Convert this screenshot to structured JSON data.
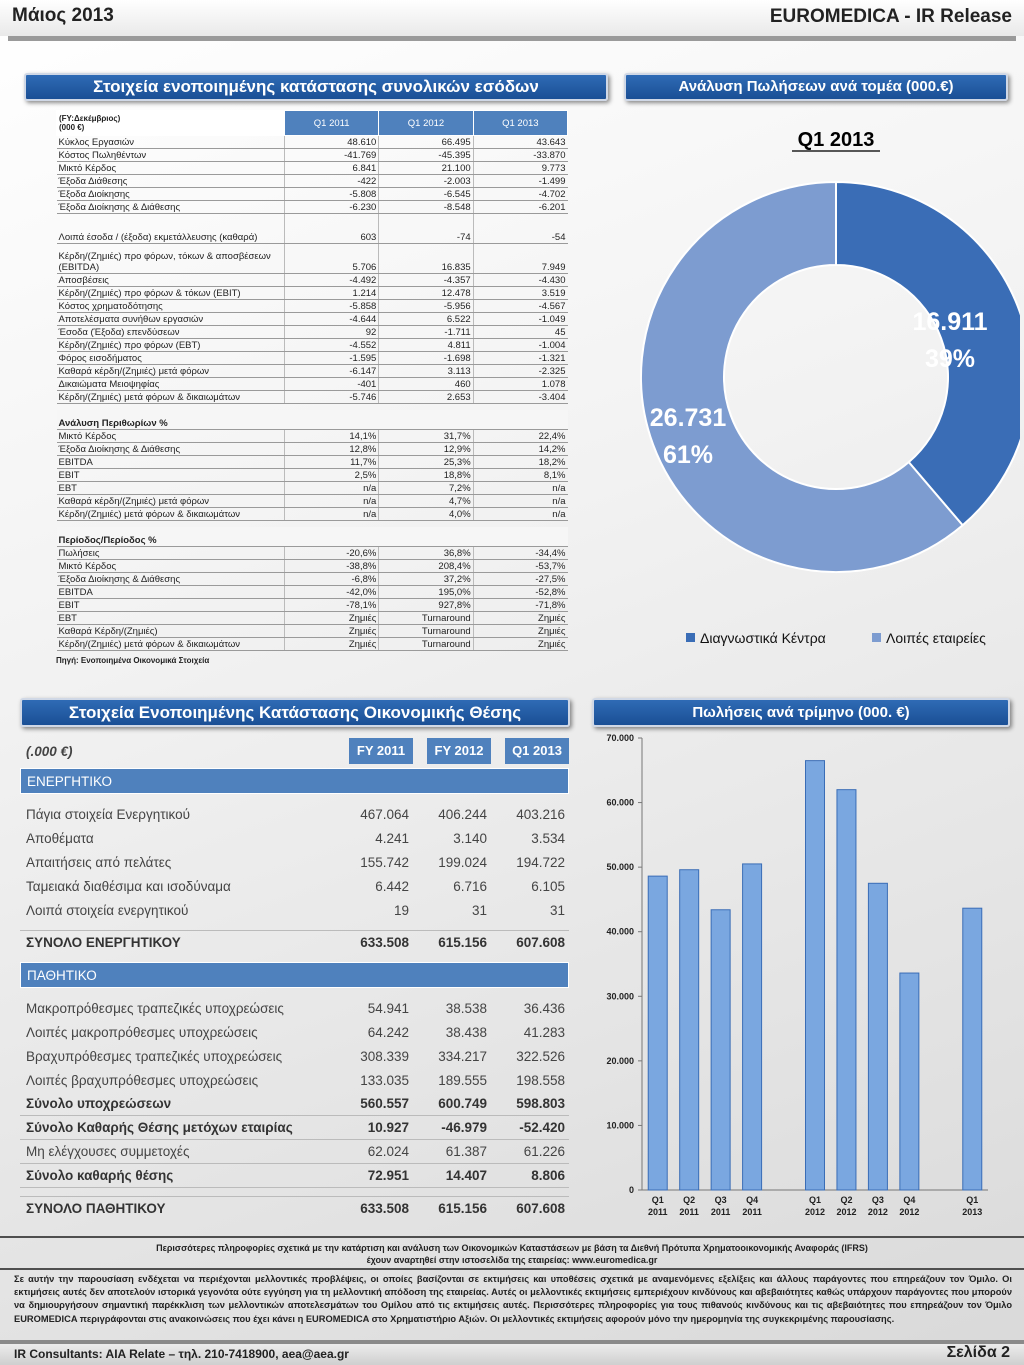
{
  "header": {
    "left": "Μάιος 2013",
    "right": "EUROMEDICA - IR Release"
  },
  "banners": {
    "income": "Στοιχεία ενοποιημένης κατάστασης συνολικών εσόδων",
    "sales_sector": "Ανάλυση Πωλήσεων ανά τομέα (000.€)",
    "balance": "Στοιχεία Ενοποιημένης Κατάστασης Οικονομικής Θέσης",
    "quarterly": "Πωλήσεις ανά τρίμηνο (000. €)"
  },
  "income": {
    "unit_line1": "(FY:Δεκέμβριος)",
    "unit_line2": "(000 €)",
    "columns": [
      "Q1 2011",
      "Q1 2012",
      "Q1 2013"
    ],
    "rows": [
      {
        "label": "Κύκλος Εργασιών",
        "v": [
          "48.610",
          "66.495",
          "43.643"
        ]
      },
      {
        "label": "Κόστος Πωληθέντων",
        "v": [
          "-41.769",
          "-45.395",
          "-33.870"
        ]
      },
      {
        "label": "Μικτό Κέρδος",
        "v": [
          "6.841",
          "21.100",
          "9.773"
        ]
      },
      {
        "label": "Έξοδα Διάθεσης",
        "v": [
          "-422",
          "-2.003",
          "-1.499"
        ]
      },
      {
        "label": "Έξοδα Διοίκησης",
        "v": [
          "-5.808",
          "-6.545",
          "-4.702"
        ]
      },
      {
        "label": "Έξοδα Διοίκησης & Διάθεσης",
        "v": [
          "-6.230",
          "-8.548",
          "-6.201"
        ]
      },
      {
        "label": "Λοιπά έσοδα / (έξοδα) εκμετάλλευσης (καθαρά)",
        "v": [
          "603",
          "-74",
          "-54"
        ],
        "two": true
      },
      {
        "label": "Κέρδη/(Ζημιές) προ φόρων, τόκων & αποσβέσεων (EBITDA)",
        "v": [
          "5.706",
          "16.835",
          "7.949"
        ],
        "two": true
      },
      {
        "label": "Αποσβέσεις",
        "v": [
          "-4.492",
          "-4.357",
          "-4.430"
        ]
      },
      {
        "label": "Κέρδη/(Ζημιές) προ φόρων & τόκων (EBIT)",
        "v": [
          "1.214",
          "12.478",
          "3.519"
        ]
      },
      {
        "label": "Κόστος χρηματοδότησης",
        "v": [
          "-5.858",
          "-5.956",
          "-4.567"
        ]
      },
      {
        "label": "Αποτελέσματα συνήθων εργασιών",
        "v": [
          "-4.644",
          "6.522",
          "-1.049"
        ]
      },
      {
        "label": "Έσοδα (Έξοδα) επενδύσεων",
        "v": [
          "92",
          "-1.711",
          "45"
        ]
      },
      {
        "label": "Κέρδη/(Ζημιές) προ φόρων (EBT)",
        "v": [
          "-4.552",
          "4.811",
          "-1.004"
        ]
      },
      {
        "label": "Φόρος εισοδήματος",
        "v": [
          "-1.595",
          "-1.698",
          "-1.321"
        ]
      },
      {
        "label": "Καθαρά κέρδη/(Ζημιές) μετά φόρων",
        "v": [
          "-6.147",
          "3.113",
          "-2.325"
        ]
      },
      {
        "label": "Δικαιώματα Μειοψηφίας",
        "v": [
          "-401",
          "460",
          "1.078"
        ]
      },
      {
        "label": "Κέρδη/(Ζημιές) μετά φόρων & δικαιωμάτων",
        "v": [
          "-5.746",
          "2.653",
          "-3.404"
        ]
      }
    ],
    "margins_title": "Ανάλυση Περιθωρίων %",
    "margins": [
      {
        "label": "Μικτό Κέρδος",
        "v": [
          "14,1%",
          "31,7%",
          "22,4%"
        ]
      },
      {
        "label": "Έξοδα Διοίκησης & Διάθεσης",
        "v": [
          "12,8%",
          "12,9%",
          "14,2%"
        ]
      },
      {
        "label": "EBITDA",
        "v": [
          "11,7%",
          "25,3%",
          "18,2%"
        ]
      },
      {
        "label": "EBIT",
        "v": [
          "2,5%",
          "18,8%",
          "8,1%"
        ]
      },
      {
        "label": "EBT",
        "v": [
          "n/a",
          "7,2%",
          "n/a"
        ]
      },
      {
        "label": "Καθαρά κέρδη/(Ζημιές) μετά φόρων",
        "v": [
          "n/a",
          "4,7%",
          "n/a"
        ]
      },
      {
        "label": "Κέρδη/(Ζημιές) μετά φόρων & δικαιωμάτων",
        "v": [
          "n/a",
          "4,0%",
          "n/a"
        ]
      }
    ],
    "period_title": "Περίοδος/Περίοδος %",
    "period": [
      {
        "label": "Πωλήσεις",
        "v": [
          "-20,6%",
          "36,8%",
          "-34,4%"
        ]
      },
      {
        "label": "Μικτό Κέρδος",
        "v": [
          "-38,8%",
          "208,4%",
          "-53,7%"
        ]
      },
      {
        "label": "Έξοδα Διοίκησης & Διάθεσης",
        "v": [
          "-6,8%",
          "37,2%",
          "-27,5%"
        ]
      },
      {
        "label": "EBITDA",
        "v": [
          "-42,0%",
          "195,0%",
          "-52,8%"
        ]
      },
      {
        "label": "EBIT",
        "v": [
          "-78,1%",
          "927,8%",
          "-71,8%"
        ]
      },
      {
        "label": "EBT",
        "v": [
          "Ζημιές",
          "Turnaround",
          "Ζημιές"
        ]
      },
      {
        "label": "Καθαρά Κέρδη/(Ζημιές)",
        "v": [
          "Ζημιές",
          "Turnaround",
          "Ζημιές"
        ]
      },
      {
        "label": "Κέρδη/(Ζημιές) μετά φόρων & δικαιωμάτων",
        "v": [
          "Ζημιές",
          "Turnaround",
          "Ζημιές"
        ]
      }
    ],
    "source": "Πηγή: Ενοποιημένα Οικονομικά Στοιχεία"
  },
  "balance": {
    "unit": "(.000 €)",
    "columns": [
      "FY 2011",
      "FY 2012",
      "Q1 2013"
    ],
    "assets_title": "ΕΝΕΡΓΗΤΙΚΟ",
    "assets": [
      {
        "label": "Πάγια στοιχεία Ενεργητικού",
        "v": [
          "467.064",
          "406.244",
          "403.216"
        ]
      },
      {
        "label": "Αποθέματα",
        "v": [
          "4.241",
          "3.140",
          "3.534"
        ]
      },
      {
        "label": "Απαιτήσεις από πελάτες",
        "v": [
          "155.742",
          "199.024",
          "194.722"
        ]
      },
      {
        "label": "Ταμειακά διαθέσιμα και ισοδύναμα",
        "v": [
          "6.442",
          "6.716",
          "6.105"
        ]
      },
      {
        "label": "Λοιπά στοιχεία ενεργητικού",
        "v": [
          "19",
          "31",
          "31"
        ]
      }
    ],
    "assets_total": {
      "label": "ΣΥΝΟΛΟ ΕΝΕΡΓΗΤΙΚΟΥ",
      "v": [
        "633.508",
        "615.156",
        "607.608"
      ]
    },
    "liab_title": "ΠΑΘΗΤΙΚΟ",
    "liab": [
      {
        "label": "Μακροπρόθεσμες  τραπεζικές υποχρεώσεις",
        "v": [
          "54.941",
          "38.538",
          "36.436"
        ]
      },
      {
        "label": "Λοιπές μακροπρόθεσμες υποχρεώσεις",
        "v": [
          "64.242",
          "38.438",
          "41.283"
        ]
      },
      {
        "label": "Βραχυπρόθεσμες τραπεζικές υποχρεώσεις",
        "v": [
          "308.339",
          "334.217",
          "322.526"
        ]
      },
      {
        "label": "Λοιπές βραχυπρόθεσμες υποχρεώσεις",
        "v": [
          "133.035",
          "189.555",
          "198.558"
        ]
      }
    ],
    "liab_total": {
      "label": "Σύνολο υποχρεώσεων",
      "v": [
        "560.557",
        "600.749",
        "598.803"
      ]
    },
    "equity_parent": {
      "label": "Σύνολο Καθαρής Θέσης μετόχων εταιρίας",
      "v": [
        "10.927",
        "-46.979",
        "-52.420"
      ]
    },
    "minority": {
      "label": "Μη ελέγχουσες συμμετοχές",
      "v": [
        "62.024",
        "61.387",
        "61.226"
      ]
    },
    "equity_total": {
      "label": "Σύνολο καθαρής θέσης",
      "v": [
        "72.951",
        "14.407",
        "8.806"
      ]
    },
    "grand_total": {
      "label": "ΣΥΝΟΛΟ ΠΑΘΗΤΙΚΟΥ",
      "v": [
        "633.508",
        "615.156",
        "607.608"
      ]
    }
  },
  "chart_data": [
    {
      "type": "pie",
      "title": "Q1 2013",
      "categories": [
        "Διαγνωστικά Κέντρα",
        "Λοιπές εταιρείες"
      ],
      "values": [
        16911,
        26731
      ],
      "value_labels": [
        "16.911",
        "26.731"
      ],
      "percent_labels": [
        "39%",
        "61%"
      ],
      "colors": [
        "#3a6db6",
        "#7d9cd0"
      ],
      "legend": "bottom"
    },
    {
      "type": "bar",
      "categories": [
        "Q1 2011",
        "Q2 2011",
        "Q3 2011",
        "Q4 2011",
        "Q1 2012",
        "Q2 2012",
        "Q3 2012",
        "Q4 2012",
        "Q1 2013"
      ],
      "tick_line1": [
        "Q1",
        "Q2",
        "Q3",
        "Q4",
        "Q1",
        "Q2",
        "Q3",
        "Q4",
        "Q1"
      ],
      "tick_line2": [
        "2011",
        "2011",
        "2011",
        "2011",
        "2012",
        "2012",
        "2012",
        "2012",
        "2013"
      ],
      "values": [
        48610,
        49600,
        43400,
        50500,
        66495,
        62000,
        47500,
        33600,
        43643
      ],
      "ylim": [
        0,
        70000
      ],
      "yticks": [
        "0",
        "10.000",
        "20.000",
        "30.000",
        "40.000",
        "50.000",
        "60.000",
        "70.000"
      ],
      "color": "#7aa7e0"
    }
  ],
  "footer": {
    "source_line1": "Περισσότερες πληροφορίες σχετικά με την κατάρτιση και ανάλυση των Οικονομικών Καταστάσεων με βάση τα Διεθνή Πρότυπα Χρηματοοικονομικής Αναφοράς (IFRS)",
    "source_line2": "έχουν αναρτηθεί στην ιστοσελίδα της εταιρείας: www.euromedica.gr",
    "disclaimer": "Σε αυτήν την παρουσίαση ενδέχεται να περιέχονται μελλοντικές προβλέψεις, οι οποίες βασίζονται σε εκτιμήσεις και υποθέσεις σχετικά με αναμενόμενες εξελίξεις και άλλους παράγοντες που επηρεάζουν τον Όμιλο. Οι εκτιμήσεις αυτές δεν αποτελούν ιστορικά γεγονότα ούτε εγγύηση για τη μελλοντική απόδοση της εταιρείας. Αυτές οι μελλοντικές εκτιμήσεις εμπεριέχουν κινδύνους και αβεβαιότητες καθώς υπάρχουν παράγοντες που μπορούν να δημιουργήσουν σημαντική παρέκκλιση των μελλοντικών αποτελεσμάτων του Ομίλου από τις εκτιμήσεις αυτές. Περισσότερες πληροφορίες για τους πιθανούς κινδύνους και τις αβεβαιότητες που επηρεάζουν τον Όμιλο EUROMEDICA περιγράφονται στις ανακοινώσεις που έχει κάνει η EUROMEDICA στο Χρηματιστήριο Αξιών. Οι μελλοντικές εκτιμήσεις αφορούν μόνο την ημερομηνία της συγκεκριμένης παρουσίασης.",
    "contact": "IR Consultants: AIA Relate – τηλ. 210-7418900, aea@aea.gr",
    "page": "Σελίδα 2"
  }
}
